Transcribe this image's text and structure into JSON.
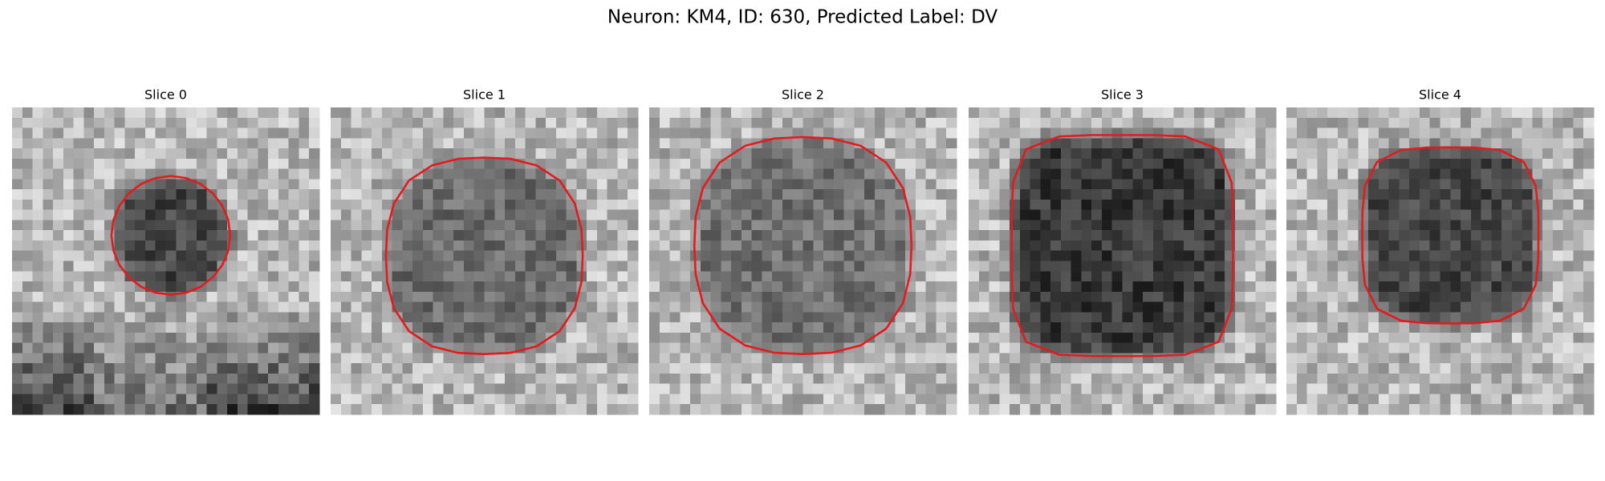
{
  "title": "Neuron: KM4, ID: 630, Predicted Label: DV",
  "panels": [
    {
      "label": "Slice 0"
    },
    {
      "label": "Slice 1"
    },
    {
      "label": "Slice 2"
    },
    {
      "label": "Slice 3"
    },
    {
      "label": "Slice 4"
    }
  ]
}
